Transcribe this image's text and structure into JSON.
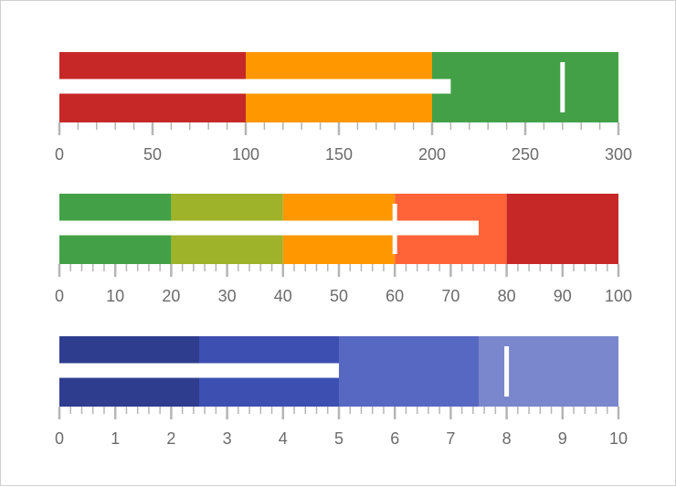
{
  "chart_data": [
    {
      "type": "bullet",
      "axis": {
        "min": 0,
        "max": 300,
        "major_ticks": [
          0,
          50,
          100,
          150,
          200,
          250,
          300
        ],
        "minor_step": 10
      },
      "tick_labels": [
        "0",
        "50",
        "100",
        "150",
        "200",
        "250",
        "300"
      ],
      "ranges": [
        {
          "from": 0,
          "to": 100,
          "color": "#c62828"
        },
        {
          "from": 100,
          "to": 200,
          "color": "#ff9800"
        },
        {
          "from": 200,
          "to": 300,
          "color": "#43a047"
        }
      ],
      "value": 210,
      "target": 270
    },
    {
      "type": "bullet",
      "axis": {
        "min": 0,
        "max": 100,
        "major_ticks": [
          0,
          10,
          20,
          30,
          40,
          50,
          60,
          70,
          80,
          90,
          100
        ],
        "minor_step": 2
      },
      "tick_labels": [
        "0",
        "10",
        "20",
        "30",
        "40",
        "50",
        "60",
        "70",
        "80",
        "90",
        "100"
      ],
      "ranges": [
        {
          "from": 0,
          "to": 20,
          "color": "#43a047"
        },
        {
          "from": 20,
          "to": 40,
          "color": "#9eb22a"
        },
        {
          "from": 40,
          "to": 60,
          "color": "#ff9800"
        },
        {
          "from": 60,
          "to": 80,
          "color": "#ff6338"
        },
        {
          "from": 80,
          "to": 100,
          "color": "#c62828"
        }
      ],
      "value": 75,
      "target": 60
    },
    {
      "type": "bullet",
      "axis": {
        "min": 0,
        "max": 10,
        "major_ticks": [
          0,
          1,
          2,
          3,
          4,
          5,
          6,
          7,
          8,
          9,
          10
        ],
        "minor_step": 0.2
      },
      "tick_labels": [
        "0",
        "1",
        "2",
        "3",
        "4",
        "5",
        "6",
        "7",
        "8",
        "9",
        "10"
      ],
      "ranges": [
        {
          "from": 0,
          "to": 2.5,
          "color": "#2f3d8f"
        },
        {
          "from": 2.5,
          "to": 5,
          "color": "#3d4fb0"
        },
        {
          "from": 5,
          "to": 7.5,
          "color": "#5768c2"
        },
        {
          "from": 7.5,
          "to": 10,
          "color": "#7a87cc"
        }
      ],
      "value": 5,
      "target": 8
    }
  ]
}
